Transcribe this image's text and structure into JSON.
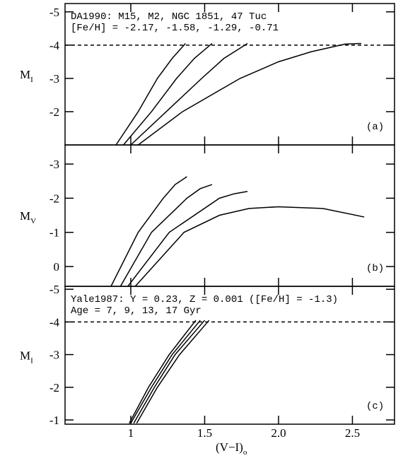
{
  "chart_data": [
    {
      "type": "line",
      "annotations": [
        "DA1990: M15, M2, NGC 1851, 47 Tuc",
        "[Fe/H] = -2.17, -1.58, -1.29, -0.71"
      ],
      "panel_label": "(a)",
      "ylabel": "M",
      "ylabel_sub": "I",
      "xlim": [
        0.555,
        2.785
      ],
      "xticks": [
        1,
        1.5,
        {
          "value": 2,
          "label": "2.0"
        },
        2.5
      ],
      "ylim": [
        -1,
        -5.25
      ],
      "yticks": [
        -5,
        -4,
        -3,
        -2
      ],
      "hline": -4,
      "series": [
        {
          "color": "#000000",
          "x": [
            0.9,
            1.05,
            1.18,
            1.28,
            1.37
          ],
          "values": [
            -1,
            -2,
            -3,
            -3.6,
            -4.05
          ]
        },
        {
          "color": "#000000",
          "x": [
            0.95,
            1.14,
            1.31,
            1.43,
            1.55
          ],
          "values": [
            -1,
            -2,
            -3,
            -3.6,
            -4.05
          ]
        },
        {
          "color": "#000000",
          "x": [
            1.0,
            1.24,
            1.48,
            1.63,
            1.79
          ],
          "values": [
            -1,
            -2,
            -3,
            -3.6,
            -4.05
          ]
        },
        {
          "color": "#000000",
          "x": [
            1.05,
            1.35,
            1.74,
            2.0,
            2.22,
            2.45,
            2.56
          ],
          "values": [
            -1,
            -2,
            -3,
            -3.5,
            -3.8,
            -4.03,
            -4.05
          ]
        }
      ]
    },
    {
      "type": "line",
      "panel_label": "(b)",
      "ylabel": "M",
      "ylabel_sub": "V",
      "xlim": [
        0.555,
        2.785
      ],
      "xticks": [
        1,
        1.5,
        {
          "value": 2,
          "label": "2.0"
        },
        2.5
      ],
      "ylim": [
        0.58,
        -3.56
      ],
      "yticks": [
        -3,
        -2,
        -1,
        0
      ],
      "series": [
        {
          "color": "#000000",
          "x": [
            0.866,
            1.05,
            1.22,
            1.3,
            1.38
          ],
          "values": [
            0.58,
            -1,
            -2,
            -2.4,
            -2.63
          ]
        },
        {
          "color": "#000000",
          "x": [
            0.93,
            1.14,
            1.38,
            1.47,
            1.55
          ],
          "values": [
            0.58,
            -1,
            -2,
            -2.28,
            -2.4
          ]
        },
        {
          "color": "#000000",
          "x": [
            0.98,
            1.26,
            1.6,
            1.7,
            1.79
          ],
          "values": [
            0.58,
            -1,
            -2,
            -2.13,
            -2.2
          ]
        },
        {
          "color": "#000000",
          "x": [
            1.03,
            1.36,
            1.6,
            1.8,
            2.0,
            2.3,
            2.58
          ],
          "values": [
            0.58,
            -1,
            -1.5,
            -1.7,
            -1.75,
            -1.7,
            -1.45
          ]
        }
      ]
    },
    {
      "type": "line",
      "annotations": [
        "Yale1987: Y = 0.23, Z = 0.001 ([Fe/H] = -1.3)",
        "Age = 7, 9, 13, 17 Gyr"
      ],
      "panel_label": "(c)",
      "ylabel": "M",
      "ylabel_sub": "I",
      "xlabel": "(V−I)",
      "xlabel_sub": "o",
      "xlim": [
        0.555,
        2.785
      ],
      "xticks": [
        1,
        1.5,
        {
          "value": 2,
          "label": "2.0"
        },
        2.5
      ],
      "ylim": [
        -0.87,
        -5.09
      ],
      "yticks": [
        -5,
        -4,
        -3,
        -2,
        -1
      ],
      "hline": -4,
      "series": [
        {
          "color": "#000000",
          "x": [
            0.99,
            1.12,
            1.26,
            1.44
          ],
          "values": [
            -0.9,
            -2,
            -3,
            -4.05
          ]
        },
        {
          "color": "#000000",
          "x": [
            1.0,
            1.14,
            1.28,
            1.47
          ],
          "values": [
            -0.9,
            -2,
            -3,
            -4.05
          ]
        },
        {
          "color": "#000000",
          "x": [
            1.02,
            1.16,
            1.3,
            1.5
          ],
          "values": [
            -0.9,
            -2,
            -3,
            -4.05
          ]
        },
        {
          "color": "#000000",
          "x": [
            1.04,
            1.18,
            1.33,
            1.53
          ],
          "values": [
            -0.9,
            -2,
            -3,
            -4.05
          ]
        }
      ]
    }
  ]
}
